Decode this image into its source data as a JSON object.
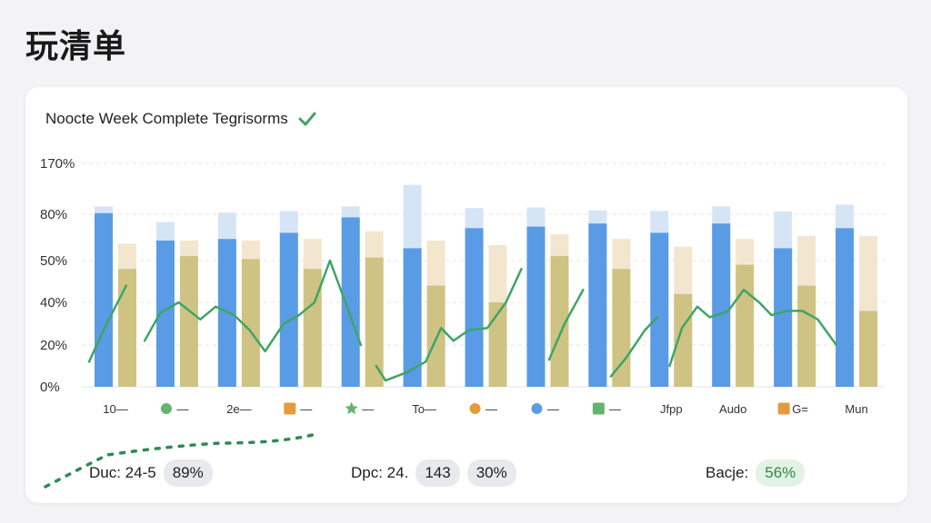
{
  "page": {
    "title": "玩清单"
  },
  "card": {
    "header": "Noocte Week Complete Tegrisorms"
  },
  "colors": {
    "bar_main": "#5a9be6",
    "bar_main_light": "#d6e5f6",
    "bar_secondary": "#cfc384",
    "bar_secondary_light": "#f2e7ce",
    "line": "#3ea565",
    "check": "#3ea565"
  },
  "chart_data": {
    "type": "bar",
    "y_tick_labels": [
      "0%",
      "20%",
      "40%",
      "50%",
      "80%",
      "170%"
    ],
    "categories": [
      {
        "label": "10—",
        "icon": ""
      },
      {
        "label": "—",
        "icon": "green-flower-icon"
      },
      {
        "label": "2e—",
        "icon": ""
      },
      {
        "label": "—",
        "icon": "orange-shield-icon"
      },
      {
        "label": "—",
        "icon": "green-star-icon"
      },
      {
        "label": "To—",
        "icon": ""
      },
      {
        "label": "—",
        "icon": "orange-swirl-icon"
      },
      {
        "label": "—",
        "icon": "blue-circle-icon"
      },
      {
        "label": "—",
        "icon": "green-square-icon"
      },
      {
        "label": "Jfpp",
        "icon": ""
      },
      {
        "label": "Audo",
        "icon": ""
      },
      {
        "label": "G=",
        "icon": "orange-box-icon"
      },
      {
        "label": "Mun",
        "icon": ""
      }
    ],
    "series": [
      {
        "role": "main_total",
        "values": [
          94,
          75,
          83,
          86,
          94,
          132,
          91,
          92,
          87,
          86,
          94,
          85,
          97
        ]
      },
      {
        "role": "main",
        "values": [
          82,
          63,
          64,
          68,
          78,
          58,
          71,
          72,
          74,
          68,
          74,
          58,
          71
        ]
      },
      {
        "role": "secondary_total",
        "values": [
          61,
          63,
          63,
          64,
          69,
          63,
          60,
          67,
          64,
          59,
          64,
          66,
          66
        ]
      },
      {
        "role": "secondary",
        "values": [
          48,
          53,
          51,
          48,
          52,
          44,
          40,
          53,
          48,
          42,
          49,
          44,
          36
        ]
      }
    ],
    "line_segments": [
      [
        [
          0,
          12
        ],
        [
          0.5,
          28
        ],
        [
          1.2,
          44
        ]
      ],
      [
        [
          1.8,
          22
        ],
        [
          2.3,
          35
        ],
        [
          2.9,
          40
        ],
        [
          3.6,
          32
        ],
        [
          4.1,
          38
        ],
        [
          4.7,
          34
        ],
        [
          5.2,
          27
        ],
        [
          5.7,
          17
        ],
        [
          6.3,
          30
        ],
        [
          6.8,
          34
        ],
        [
          7.3,
          40
        ],
        [
          7.8,
          50
        ],
        [
          8.3,
          40
        ],
        [
          8.8,
          20
        ]
      ],
      [
        [
          9.3,
          10
        ],
        [
          9.6,
          3
        ],
        [
          10.3,
          7
        ],
        [
          10.9,
          12
        ],
        [
          11.4,
          28
        ],
        [
          11.8,
          22
        ],
        [
          12.3,
          27
        ],
        [
          12.9,
          28
        ],
        [
          13.5,
          40
        ],
        [
          14.0,
          48
        ]
      ],
      [
        [
          14.9,
          13
        ],
        [
          15.4,
          30
        ],
        [
          16.0,
          43
        ]
      ],
      [
        [
          16.9,
          5
        ],
        [
          17.4,
          14
        ],
        [
          18.0,
          27
        ],
        [
          18.4,
          33
        ]
      ],
      [
        [
          18.8,
          10
        ],
        [
          19.2,
          28
        ],
        [
          19.7,
          38
        ],
        [
          20.1,
          33
        ],
        [
          20.7,
          36
        ],
        [
          21.2,
          43
        ],
        [
          21.7,
          40
        ],
        [
          22.1,
          34
        ],
        [
          22.6,
          36
        ],
        [
          23.1,
          36
        ],
        [
          23.6,
          32
        ],
        [
          24.2,
          20
        ]
      ]
    ]
  },
  "footer": {
    "left_label": "Duc: 24-5",
    "left_value": "89%",
    "mid_label": "Dpc: 24.",
    "mid_value_a": "143",
    "mid_value_b": "30%",
    "right_label": "Bacje:",
    "right_value": "56%"
  }
}
